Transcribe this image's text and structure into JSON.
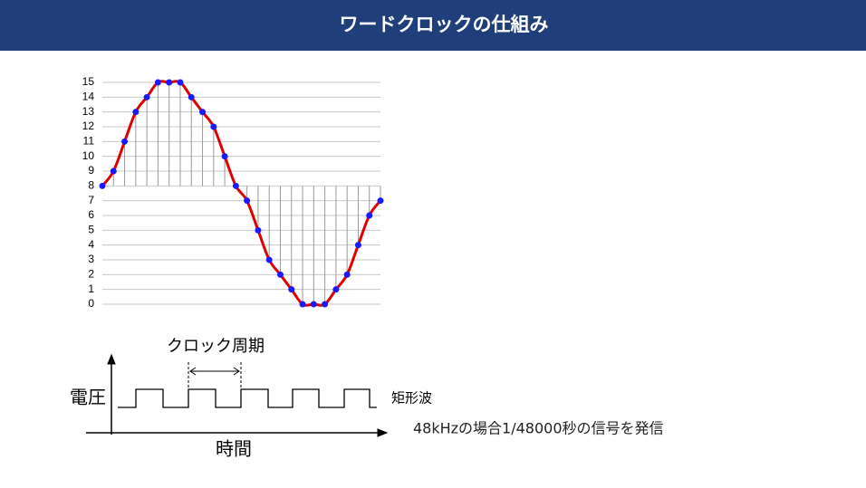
{
  "header": {
    "title": "ワードクロックの仕組み"
  },
  "chart_data": {
    "type": "line",
    "x": [
      0,
      1,
      2,
      3,
      4,
      5,
      6,
      7,
      8,
      9,
      10,
      11,
      12,
      13,
      14,
      15,
      16,
      17,
      18,
      19,
      20,
      21,
      22,
      23,
      24,
      25
    ],
    "xlim": [
      0,
      25
    ],
    "series": [
      {
        "color": "#e00000",
        "marker_color": "#1a1aff",
        "values": [
          8,
          9,
          11,
          13,
          14,
          15,
          15,
          15,
          14,
          13,
          12,
          10,
          8,
          7,
          5,
          3,
          2,
          1,
          0,
          0,
          0,
          1,
          2,
          4,
          6,
          7
        ]
      }
    ],
    "ylim": [
      0,
      15
    ],
    "yticks": [
      0,
      1,
      2,
      3,
      4,
      5,
      6,
      7,
      8,
      9,
      10,
      11,
      12,
      13,
      14,
      15
    ],
    "grid": true,
    "smooth": true,
    "stem_base": 8,
    "stem_color": "#9a9a9a"
  },
  "diagram": {
    "clock_period_label": "クロック周期",
    "y_axis_label": "電圧",
    "x_axis_label": "時間",
    "wave_label": "矩形波",
    "note": "48kHzの場合1/48000秒の信号を発信"
  }
}
